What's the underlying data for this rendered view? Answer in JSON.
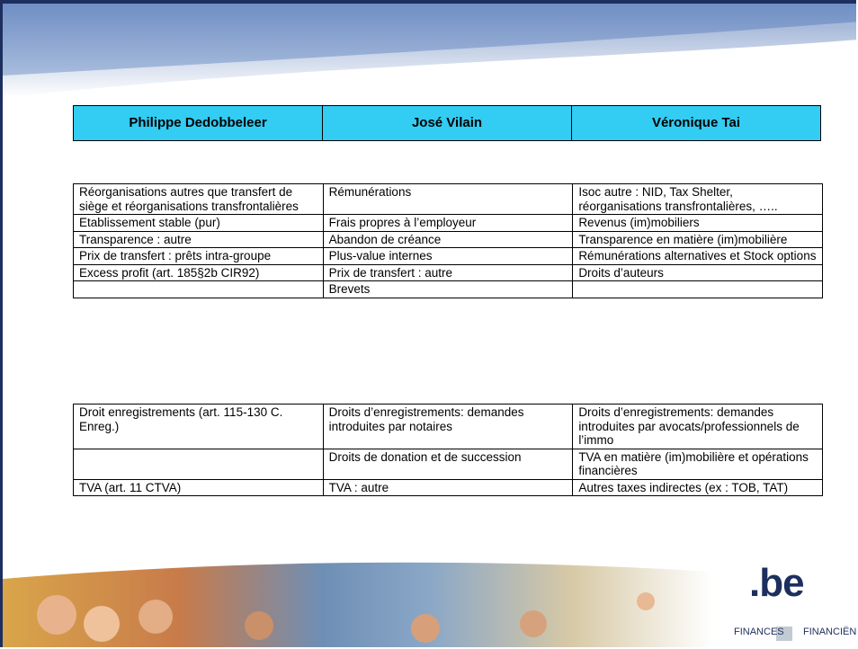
{
  "header": {
    "columns": [
      "Philippe Dedobbeleer",
      "José Vilain",
      "Véronique Tai"
    ]
  },
  "table_1": {
    "rows": [
      [
        "Réorganisations autres que transfert de siège et réorganisations transfrontalières",
        "Rémunérations",
        "Isoc autre : NID, Tax Shelter, réorganisations transfrontalières, ….."
      ],
      [
        "Etablissement stable (pur)",
        "Frais propres à l’employeur",
        "Revenus (im)mobiliers"
      ],
      [
        "Transparence : autre",
        "Abandon de créance",
        "Transparence en matière (im)mobilière"
      ],
      [
        "Prix de transfert : prêts intra-groupe",
        "Plus-value internes",
        "Rémunérations alternatives et Stock options"
      ],
      [
        "Excess profit (art. 185§2b CIR92)",
        "Prix de transfert : autre",
        "Droits d’auteurs"
      ],
      [
        null,
        "Brevets",
        null
      ]
    ]
  },
  "table_2": {
    "rows": [
      [
        "Droit enregistrements (art. 115-130 C. Enreg.)",
        "Droits d’enregistrements: demandes introduites par notaires",
        "Droits d’enregistrements: demandes introduites par avocats/professionnels de l’immo"
      ],
      [
        null,
        "Droits de donation et de succession",
        "TVA en matière (im)mobilière et opérations financières"
      ],
      [
        "TVA (art. 11 CTVA)",
        "TVA : autre",
        "Autres taxes indirectes (ex : TOB, TAT)"
      ]
    ]
  },
  "footer": {
    "logo": ".be",
    "left_word": "FINANCES",
    "right_word": "FINANCIËN"
  }
}
